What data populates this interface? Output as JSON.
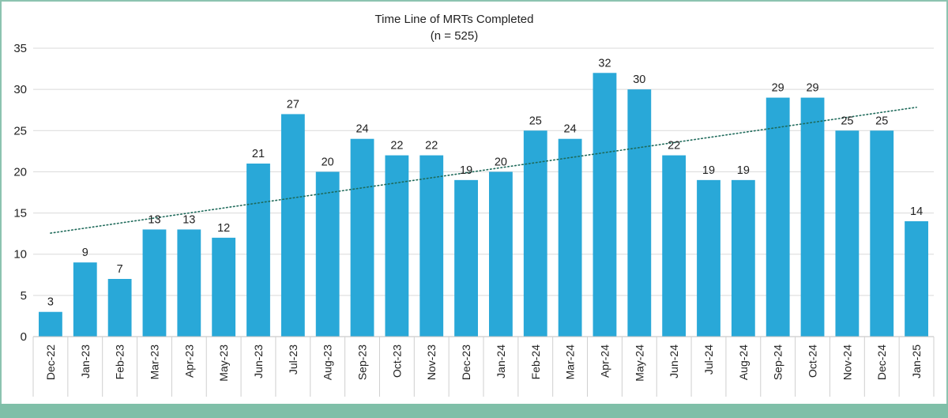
{
  "chart_data": {
    "type": "bar",
    "title": "Time Line of MRTs Completed",
    "subtitle": "(n = 525)",
    "xlabel": "",
    "ylabel": "",
    "ylim": [
      0,
      35
    ],
    "yticks": [
      0,
      5,
      10,
      15,
      20,
      25,
      30,
      35
    ],
    "grid": true,
    "legend": "none",
    "categories": [
      "Dec-22",
      "Jan-23",
      "Feb-23",
      "Mar-23",
      "Apr-23",
      "May-23",
      "Jun-23",
      "Jul-23",
      "Aug-23",
      "Sep-23",
      "Oct-23",
      "Nov-23",
      "Dec-23",
      "Jan-24",
      "Feb-24",
      "Mar-24",
      "Apr-24",
      "May-24",
      "Jun-24",
      "Jul-24",
      "Aug-24",
      "Sep-24",
      "Oct-24",
      "Nov-24",
      "Dec-24",
      "Jan-25"
    ],
    "values": [
      3,
      9,
      7,
      13,
      13,
      12,
      21,
      27,
      20,
      24,
      22,
      22,
      19,
      20,
      25,
      24,
      32,
      30,
      22,
      19,
      19,
      29,
      29,
      25,
      25,
      14
    ],
    "trendline": {
      "type": "linear",
      "style": "dotted"
    },
    "colors": {
      "bar": "#29a8d8",
      "trend": "#1e6a5a",
      "grid": "#d9d9d9"
    }
  }
}
